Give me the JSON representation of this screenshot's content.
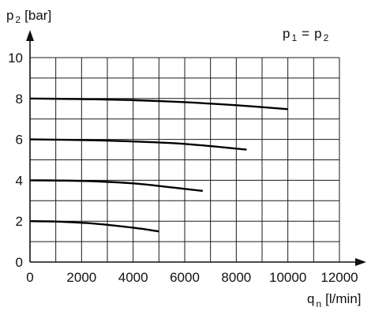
{
  "chart_data": {
    "type": "line",
    "y_axis": {
      "symbol": "p",
      "subscript": "2",
      "unit": "[bar]"
    },
    "x_axis": {
      "symbol": "q",
      "subscript": "n",
      "unit": "[l/min]"
    },
    "annotation": {
      "left_symbol": "p",
      "left_sub": "1",
      "equals": "=",
      "right_symbol": "p",
      "right_sub": "2"
    },
    "xlim": [
      0,
      12000
    ],
    "ylim": [
      0,
      10
    ],
    "x_ticks": [
      "0",
      "2000",
      "4000",
      "6000",
      "8000",
      "10000",
      "12000"
    ],
    "y_ticks": [
      "0",
      "2",
      "4",
      "6",
      "8",
      "10"
    ],
    "grid": true,
    "series": [
      {
        "values": [
          [
            0,
            8.0
          ],
          [
            2000,
            7.97
          ],
          [
            4000,
            7.92
          ],
          [
            6000,
            7.82
          ],
          [
            8000,
            7.67
          ],
          [
            10000,
            7.48
          ]
        ]
      },
      {
        "values": [
          [
            0,
            6.0
          ],
          [
            2000,
            5.97
          ],
          [
            4000,
            5.9
          ],
          [
            6000,
            5.78
          ],
          [
            8400,
            5.5
          ]
        ]
      },
      {
        "values": [
          [
            0,
            4.0
          ],
          [
            2000,
            3.97
          ],
          [
            4000,
            3.85
          ],
          [
            5500,
            3.65
          ],
          [
            6700,
            3.48
          ]
        ]
      },
      {
        "values": [
          [
            0,
            2.0
          ],
          [
            1000,
            1.98
          ],
          [
            2500,
            1.88
          ],
          [
            4000,
            1.68
          ],
          [
            5000,
            1.5
          ]
        ]
      }
    ]
  }
}
